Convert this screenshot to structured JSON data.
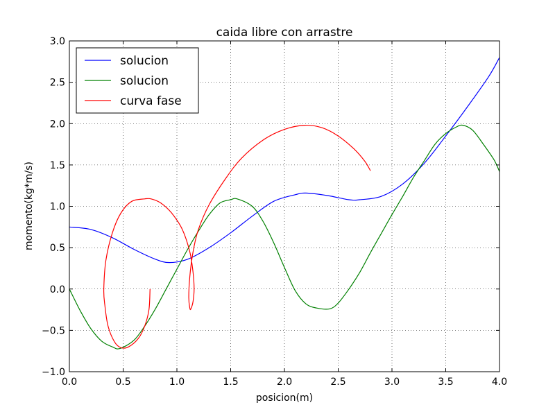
{
  "chart_data": {
    "type": "line",
    "title": "caida libre con arrastre",
    "xlabel": "posicion(m)",
    "ylabel": "momento(kg*m/s)",
    "xlim": [
      0.0,
      4.0
    ],
    "ylim": [
      -1.0,
      3.0
    ],
    "x_ticks": [
      "0.0",
      "0.5",
      "1.0",
      "1.5",
      "2.0",
      "2.5",
      "3.0",
      "3.5",
      "4.0"
    ],
    "y_ticks": [
      "−1.0",
      "−0.5",
      "0.0",
      "0.5",
      "1.0",
      "1.5",
      "2.0",
      "2.5",
      "3.0"
    ],
    "grid": true,
    "legend_position": "top-left",
    "series": [
      {
        "name": "solucion",
        "color": "#0000ff",
        "x": [
          0.0,
          0.2,
          0.4,
          0.6,
          0.8,
          0.93,
          1.1,
          1.3,
          1.5,
          1.7,
          1.9,
          2.1,
          2.2,
          2.4,
          2.6,
          2.7,
          2.9,
          3.1,
          3.3,
          3.5,
          3.7,
          3.9,
          4.0
        ],
        "y": [
          0.75,
          0.72,
          0.62,
          0.48,
          0.36,
          0.32,
          0.36,
          0.5,
          0.68,
          0.88,
          1.06,
          1.14,
          1.16,
          1.13,
          1.08,
          1.08,
          1.12,
          1.27,
          1.52,
          1.85,
          2.2,
          2.57,
          2.8
        ]
      },
      {
        "name": "solucion",
        "color": "#008000",
        "x": [
          0.0,
          0.1,
          0.2,
          0.3,
          0.4,
          0.47,
          0.6,
          0.7,
          0.8,
          0.9,
          1.0,
          1.1,
          1.2,
          1.3,
          1.4,
          1.5,
          1.56,
          1.7,
          1.8,
          1.9,
          2.0,
          2.1,
          2.2,
          2.3,
          2.42,
          2.5,
          2.6,
          2.7,
          2.8,
          2.9,
          3.0,
          3.1,
          3.2,
          3.3,
          3.4,
          3.5,
          3.6,
          3.66,
          3.75,
          3.85,
          3.95,
          4.0
        ],
        "y": [
          0.0,
          -0.26,
          -0.48,
          -0.63,
          -0.7,
          -0.72,
          -0.62,
          -0.45,
          -0.24,
          0.0,
          0.24,
          0.48,
          0.7,
          0.9,
          1.04,
          1.08,
          1.09,
          1.0,
          0.82,
          0.56,
          0.26,
          -0.02,
          -0.18,
          -0.23,
          -0.24,
          -0.17,
          0.0,
          0.2,
          0.44,
          0.67,
          0.9,
          1.12,
          1.35,
          1.55,
          1.75,
          1.88,
          1.96,
          1.98,
          1.92,
          1.75,
          1.56,
          1.42
        ]
      },
      {
        "name": "curva fase",
        "color": "#ff0000",
        "x": [
          0.75,
          0.74,
          0.7,
          0.64,
          0.55,
          0.48,
          0.42,
          0.36,
          0.33,
          0.32,
          0.34,
          0.4,
          0.48,
          0.58,
          0.7,
          0.76,
          0.85,
          0.95,
          1.05,
          1.12,
          1.15,
          1.16,
          1.15,
          1.13,
          1.12,
          1.11,
          1.12,
          1.15,
          1.2,
          1.3,
          1.45,
          1.6,
          1.8,
          2.0,
          2.19,
          2.35,
          2.5,
          2.65,
          2.75,
          2.8
        ],
        "y": [
          0.0,
          -0.25,
          -0.45,
          -0.6,
          -0.7,
          -0.71,
          -0.64,
          -0.45,
          -0.2,
          0.0,
          0.35,
          0.68,
          0.92,
          1.06,
          1.09,
          1.09,
          1.04,
          0.92,
          0.72,
          0.45,
          0.2,
          0.0,
          -0.15,
          -0.24,
          -0.23,
          -0.1,
          0.15,
          0.45,
          0.72,
          1.02,
          1.33,
          1.58,
          1.8,
          1.93,
          1.98,
          1.95,
          1.85,
          1.69,
          1.54,
          1.43
        ]
      }
    ]
  }
}
